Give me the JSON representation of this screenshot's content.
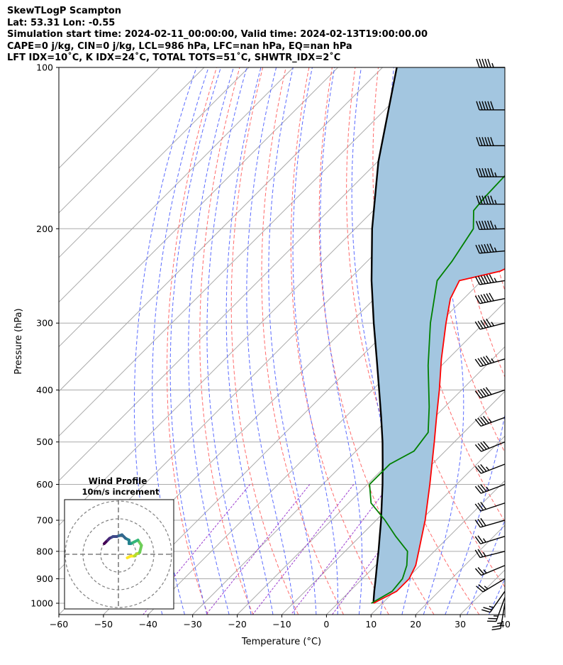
{
  "title_lines": [
    "SkewTLogP Scampton",
    "Lat: 53.31   Lon: -0.55",
    "Simulation start time: 2024-02-11_00:00:00, Valid time: 2024-02-13T19:00:00.00",
    "CAPE=0 j/kg, CIN=0 j/kg, LCL=986 hPa, LFC=nan hPa, EQ=nan hPa",
    "LFT IDX=10˚C, K IDX=24˚C, TOTAL TOTS=51˚C, SHWTR_IDX=2˚C"
  ],
  "colors": {
    "temperature": "#ff0000",
    "dewpoint": "#008000",
    "parcel": "#000000",
    "shade": "#a3c6e0",
    "dry_adiabat": "#ff6b6b",
    "moist_adiabat": "#5b6bff",
    "mixing_ratio": "#9b3bcf",
    "isotherm": "#aaaaaa",
    "hodo_grid": "#7f7f7f"
  },
  "chart_data": {
    "type": "skewt",
    "xlabel": "Temperature ($^\\circ$C)",
    "ylabel": "Pressure (hPa)",
    "xlim": [
      -60,
      40
    ],
    "ylim": [
      1050,
      100
    ],
    "x_ticks": [
      "−60",
      "−50",
      "−40",
      "−30",
      "−20",
      "−10",
      "0",
      "10",
      "20",
      "30",
      "40"
    ],
    "y_ticks": [
      "100",
      "200",
      "300",
      "400",
      "500",
      "600",
      "700",
      "800",
      "900",
      "1000"
    ],
    "temperature_profile": [
      {
        "p": 1000,
        "t": 8.0
      },
      {
        "p": 950,
        "t": 10.5
      },
      {
        "p": 900,
        "t": 10.5
      },
      {
        "p": 850,
        "t": 9.0
      },
      {
        "p": 800,
        "t": 6.5
      },
      {
        "p": 700,
        "t": 1.0
      },
      {
        "p": 600,
        "t": -6.0
      },
      {
        "p": 500,
        "t": -14.5
      },
      {
        "p": 450,
        "t": -19.5
      },
      {
        "p": 400,
        "t": -25.0
      },
      {
        "p": 350,
        "t": -31.5
      },
      {
        "p": 300,
        "t": -38.5
      },
      {
        "p": 270,
        "t": -43.0
      },
      {
        "p": 250,
        "t": -45.0
      },
      {
        "p": 240,
        "t": -38.0
      },
      {
        "p": 230,
        "t": -35.5
      },
      {
        "p": 200,
        "t": -34.0
      },
      {
        "p": 180,
        "t": -31.0
      },
      {
        "p": 150,
        "t": -29.0
      },
      {
        "p": 140,
        "t": -28.5
      },
      {
        "p": 130,
        "t": -28.5
      },
      {
        "p": 120,
        "t": -29.0
      },
      {
        "p": 100,
        "t": -31.0
      }
    ],
    "dewpoint_profile": [
      {
        "p": 1000,
        "t": 7.5
      },
      {
        "p": 950,
        "t": 9.5
      },
      {
        "p": 900,
        "t": 9.0
      },
      {
        "p": 850,
        "t": 7.0
      },
      {
        "p": 800,
        "t": 4.0
      },
      {
        "p": 750,
        "t": -2.0
      },
      {
        "p": 700,
        "t": -8.0
      },
      {
        "p": 650,
        "t": -15.0
      },
      {
        "p": 600,
        "t": -19.5
      },
      {
        "p": 550,
        "t": -19.5
      },
      {
        "p": 520,
        "t": -17.0
      },
      {
        "p": 480,
        "t": -18.0
      },
      {
        "p": 430,
        "t": -23.5
      },
      {
        "p": 360,
        "t": -33.0
      },
      {
        "p": 300,
        "t": -42.0
      },
      {
        "p": 250,
        "t": -50.0
      },
      {
        "p": 230,
        "t": -51.0
      },
      {
        "p": 200,
        "t": -53.5
      },
      {
        "p": 185,
        "t": -57.5
      },
      {
        "p": 175,
        "t": -58.0
      },
      {
        "p": 150,
        "t": -58.5
      },
      {
        "p": 120,
        "t": -58.5
      },
      {
        "p": 100,
        "t": -57.0
      }
    ],
    "parcel_profile": [
      {
        "p": 1000,
        "t": 8.0
      },
      {
        "p": 986,
        "t": 7.3
      },
      {
        "p": 950,
        "t": 5.5
      },
      {
        "p": 900,
        "t": 3.0
      },
      {
        "p": 850,
        "t": 0.3
      },
      {
        "p": 800,
        "t": -2.5
      },
      {
        "p": 750,
        "t": -5.6
      },
      {
        "p": 700,
        "t": -8.9
      },
      {
        "p": 650,
        "t": -12.6
      },
      {
        "p": 600,
        "t": -16.6
      },
      {
        "p": 550,
        "t": -21.1
      },
      {
        "p": 500,
        "t": -26.1
      },
      {
        "p": 450,
        "t": -31.9
      },
      {
        "p": 400,
        "t": -38.5
      },
      {
        "p": 350,
        "t": -46.0
      },
      {
        "p": 300,
        "t": -54.7
      },
      {
        "p": 250,
        "t": -64.7
      },
      {
        "p": 200,
        "t": -76.2
      },
      {
        "p": 150,
        "t": -89.8
      },
      {
        "p": 100,
        "t": -106.8
      }
    ],
    "wind_barbs": [
      {
        "p": 1000,
        "u": 2,
        "v": 12
      },
      {
        "p": 975,
        "u": 4,
        "v": 11
      },
      {
        "p": 950,
        "u": 7,
        "v": 10
      },
      {
        "p": 900,
        "u": 10,
        "v": 6
      },
      {
        "p": 850,
        "u": 12,
        "v": 5
      },
      {
        "p": 800,
        "u": 12,
        "v": 3
      },
      {
        "p": 750,
        "u": 13,
        "v": 4
      },
      {
        "p": 700,
        "u": 14,
        "v": 4
      },
      {
        "p": 650,
        "u": 15,
        "v": 5
      },
      {
        "p": 600,
        "u": 16,
        "v": 6
      },
      {
        "p": 550,
        "u": 18,
        "v": 7
      },
      {
        "p": 500,
        "u": 20,
        "v": 8
      },
      {
        "p": 450,
        "u": 22,
        "v": 8
      },
      {
        "p": 400,
        "u": 24,
        "v": 8
      },
      {
        "p": 350,
        "u": 26,
        "v": 8
      },
      {
        "p": 300,
        "u": 28,
        "v": 7
      },
      {
        "p": 270,
        "u": 30,
        "v": 6
      },
      {
        "p": 250,
        "u": 32,
        "v": 5
      },
      {
        "p": 220,
        "u": 33,
        "v": 3
      },
      {
        "p": 200,
        "u": 34,
        "v": 1
      },
      {
        "p": 180,
        "u": 34,
        "v": 0
      },
      {
        "p": 160,
        "u": 33,
        "v": 0
      },
      {
        "p": 140,
        "u": 32,
        "v": 0
      },
      {
        "p": 120,
        "u": 30,
        "v": 0
      },
      {
        "p": 100,
        "u": 28,
        "v": 0
      }
    ],
    "hodograph": {
      "title": "Wind Profile",
      "subtitle": "10m/s increment",
      "ring_step_ms": 10,
      "points": [
        [
          5,
          -2
        ],
        [
          7,
          -1
        ],
        [
          9,
          -1
        ],
        [
          10,
          0
        ],
        [
          12,
          1
        ],
        [
          13,
          5
        ],
        [
          11,
          8
        ],
        [
          9,
          7
        ],
        [
          7,
          6
        ],
        [
          6,
          6
        ],
        [
          6,
          8
        ],
        [
          4,
          9
        ],
        [
          2,
          11
        ],
        [
          -1,
          10
        ],
        [
          -3,
          10
        ],
        [
          -5,
          9
        ],
        [
          -6,
          8
        ],
        [
          -7,
          7
        ],
        [
          -8,
          6
        ]
      ]
    }
  }
}
